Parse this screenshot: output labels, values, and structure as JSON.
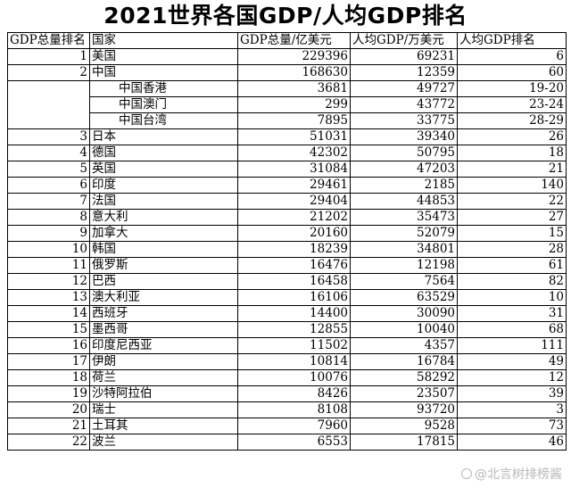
{
  "title": "2021世界各国GDP/人均GDP排名",
  "headers": [
    "GDP总量排名",
    "国家",
    "GDP总量/亿美元",
    "人均GDP/万美元",
    "人均GDP排名"
  ],
  "rows": [
    {
      "rank": "1",
      "country": "美国",
      "gdp": "229396",
      "per_capita": "69231",
      "pc_rank": "6",
      "sub": false
    },
    {
      "rank": "2",
      "country": "中国",
      "gdp": "168630",
      "per_capita": "12359",
      "pc_rank": "60",
      "sub": false
    },
    {
      "rank": "",
      "country": "中国香港",
      "gdp": "3681",
      "per_capita": "49727",
      "pc_rank": "19-20",
      "sub": true
    },
    {
      "rank": "",
      "country": "中国澳门",
      "gdp": "299",
      "per_capita": "43772",
      "pc_rank": "23-24",
      "sub": true
    },
    {
      "rank": "",
      "country": "中国台湾",
      "gdp": "7895",
      "per_capita": "33775",
      "pc_rank": "28-29",
      "sub": true
    },
    {
      "rank": "3",
      "country": "日本",
      "gdp": "51031",
      "per_capita": "39340",
      "pc_rank": "26",
      "sub": false
    },
    {
      "rank": "4",
      "country": "德国",
      "gdp": "42302",
      "per_capita": "50795",
      "pc_rank": "18",
      "sub": false
    },
    {
      "rank": "5",
      "country": "英国",
      "gdp": "31084",
      "per_capita": "47203",
      "pc_rank": "21",
      "sub": false
    },
    {
      "rank": "6",
      "country": "印度",
      "gdp": "29461",
      "per_capita": "2185",
      "pc_rank": "140",
      "sub": false
    },
    {
      "rank": "7",
      "country": "法国",
      "gdp": "29404",
      "per_capita": "44853",
      "pc_rank": "22",
      "sub": false
    },
    {
      "rank": "8",
      "country": "意大利",
      "gdp": "21202",
      "per_capita": "35473",
      "pc_rank": "27",
      "sub": false
    },
    {
      "rank": "9",
      "country": "加拿大",
      "gdp": "20160",
      "per_capita": "52079",
      "pc_rank": "15",
      "sub": false
    },
    {
      "rank": "10",
      "country": "韩国",
      "gdp": "18239",
      "per_capita": "34801",
      "pc_rank": "28",
      "sub": false
    },
    {
      "rank": "11",
      "country": "俄罗斯",
      "gdp": "16476",
      "per_capita": "12198",
      "pc_rank": "61",
      "sub": false
    },
    {
      "rank": "12",
      "country": "巴西",
      "gdp": "16458",
      "per_capita": "7564",
      "pc_rank": "82",
      "sub": false
    },
    {
      "rank": "13",
      "country": "澳大利亚",
      "gdp": "16106",
      "per_capita": "63529",
      "pc_rank": "10",
      "sub": false
    },
    {
      "rank": "14",
      "country": "西班牙",
      "gdp": "14400",
      "per_capita": "30090",
      "pc_rank": "31",
      "sub": false
    },
    {
      "rank": "15",
      "country": "墨西哥",
      "gdp": "12855",
      "per_capita": "10040",
      "pc_rank": "68",
      "sub": false
    },
    {
      "rank": "16",
      "country": "印度尼西亚",
      "gdp": "11502",
      "per_capita": "4357",
      "pc_rank": "111",
      "sub": false
    },
    {
      "rank": "17",
      "country": "伊朗",
      "gdp": "10814",
      "per_capita": "16784",
      "pc_rank": "49",
      "sub": false
    },
    {
      "rank": "18",
      "country": "荷兰",
      "gdp": "10076",
      "per_capita": "58292",
      "pc_rank": "12",
      "sub": false
    },
    {
      "rank": "19",
      "country": "沙特阿拉伯",
      "gdp": "8426",
      "per_capita": "23507",
      "pc_rank": "39",
      "sub": false
    },
    {
      "rank": "20",
      "country": "瑞士",
      "gdp": "8108",
      "per_capita": "93720",
      "pc_rank": "3",
      "sub": false
    },
    {
      "rank": "21",
      "country": "土耳其",
      "gdp": "7960",
      "per_capita": "9528",
      "pc_rank": "73",
      "sub": false
    },
    {
      "rank": "22",
      "country": "波兰",
      "gdp": "6553",
      "per_capita": "17815",
      "pc_rank": "46",
      "sub": false
    }
  ],
  "watermark": {
    "text": "@北言树排榜酱",
    "icon": "weibo-logo-icon"
  }
}
